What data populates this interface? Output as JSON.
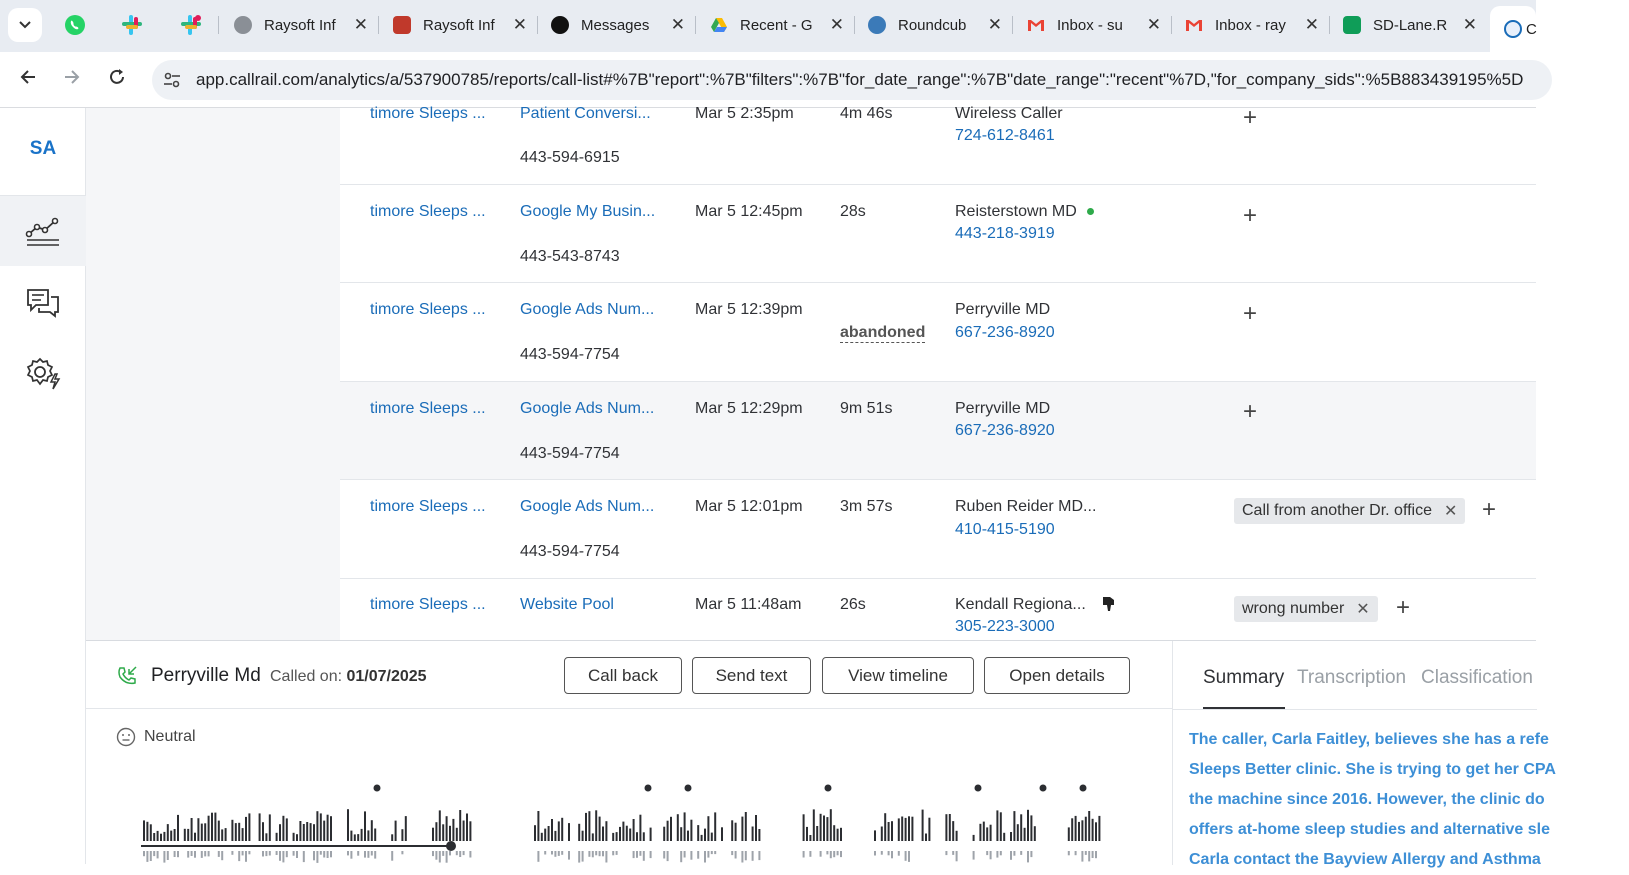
{
  "browser": {
    "tabs": [
      {
        "label": "Raysoft Inf",
        "icon": "globe-icon",
        "color": "#5f6368"
      },
      {
        "label": "Raysoft Inf",
        "icon": "raysoft-icon",
        "color": "#c0392b"
      },
      {
        "label": "Messages",
        "icon": "upwork-icon",
        "color": "#111111"
      },
      {
        "label": "Recent - G",
        "icon": "google-drive-icon",
        "color": "#34a853"
      },
      {
        "label": "Roundcub",
        "icon": "roundcube-icon",
        "color": "#3b7ab8"
      },
      {
        "label": "Inbox - su",
        "icon": "gmail-icon",
        "color": "#ea4335"
      },
      {
        "label": "Inbox - ray",
        "icon": "gmail-icon",
        "color": "#ea4335"
      },
      {
        "label": "SD-Lane.R",
        "icon": "google-sheets-icon",
        "color": "#0f9d58"
      },
      {
        "label": "C",
        "icon": "callrail-icon",
        "color": "#1a6cb8"
      }
    ],
    "url": "app.callrail.com/analytics/a/537900785/reports/call-list#%7B\"report\":%7B\"filters\":%7B\"for_date_range\":%7B\"date_range\":\"recent\"%7D,\"for_company_sids\":%5B883439195%5D"
  },
  "sidebar": {
    "account": "SA",
    "items": [
      "analytics-icon",
      "conversations-icon",
      "settings-icon"
    ]
  },
  "calls": [
    {
      "company": "timore Sleeps ...",
      "source": "Patient Conversi...",
      "tracking": "443-594-6915",
      "time": "Mar 5 2:35pm",
      "duration": "4m 46s",
      "caller": "Wireless Caller",
      "caller_phone": "724-612-8461",
      "tags": []
    },
    {
      "company": "timore Sleeps ...",
      "source": "Google My Busin...",
      "tracking": "443-543-8743",
      "time": "Mar 5 12:45pm",
      "duration": "28s",
      "caller": "Reisterstown MD",
      "caller_phone": "443-218-3919",
      "tags": [],
      "status_dot": true
    },
    {
      "company": "timore Sleeps ...",
      "source": "Google Ads Num...",
      "tracking": "443-594-7754",
      "time": "Mar 5 12:39pm",
      "duration": "abandoned",
      "caller": "Perryville MD",
      "caller_phone": "667-236-8920",
      "tags": []
    },
    {
      "company": "timore Sleeps ...",
      "source": "Google Ads Num...",
      "tracking": "443-594-7754",
      "time": "Mar 5 12:29pm",
      "duration": "9m 51s",
      "caller": "Perryville MD",
      "caller_phone": "667-236-8920",
      "tags": []
    },
    {
      "company": "timore Sleeps ...",
      "source": "Google Ads Num...",
      "tracking": "443-594-7754",
      "time": "Mar 5 12:01pm",
      "duration": "3m 57s",
      "caller": "Ruben Reider MD...",
      "caller_phone": "410-415-5190",
      "tags": [
        "Call from another Dr. office"
      ]
    },
    {
      "company": "timore Sleeps ...",
      "source": "Website Pool",
      "tracking": "",
      "time": "Mar 5 11:48am",
      "duration": "26s",
      "caller": "Kendall Regiona...",
      "caller_phone": "305-223-3000",
      "tags": [
        "wrong number"
      ],
      "thumbs_down": true
    }
  ],
  "call_panel": {
    "caller_name": "Perryville Md",
    "called_on_label": "Called on:",
    "called_on_date": "01/07/2025",
    "buttons": [
      "Call back",
      "Send text",
      "View timeline",
      "Open details"
    ],
    "sentiment": "Neutral",
    "tabs": [
      "Summary",
      "Transcription",
      "Classification"
    ],
    "summary_lines": [
      "The caller, Carla Faitley, believes she has a refe",
      "Sleeps Better clinic. She is trying to get her CPA",
      "the machine since 2016. However, the clinic do",
      "offers at-home sleep studies and alternative sle",
      "Carla contact the Bayview Allergy and Asthma"
    ]
  }
}
